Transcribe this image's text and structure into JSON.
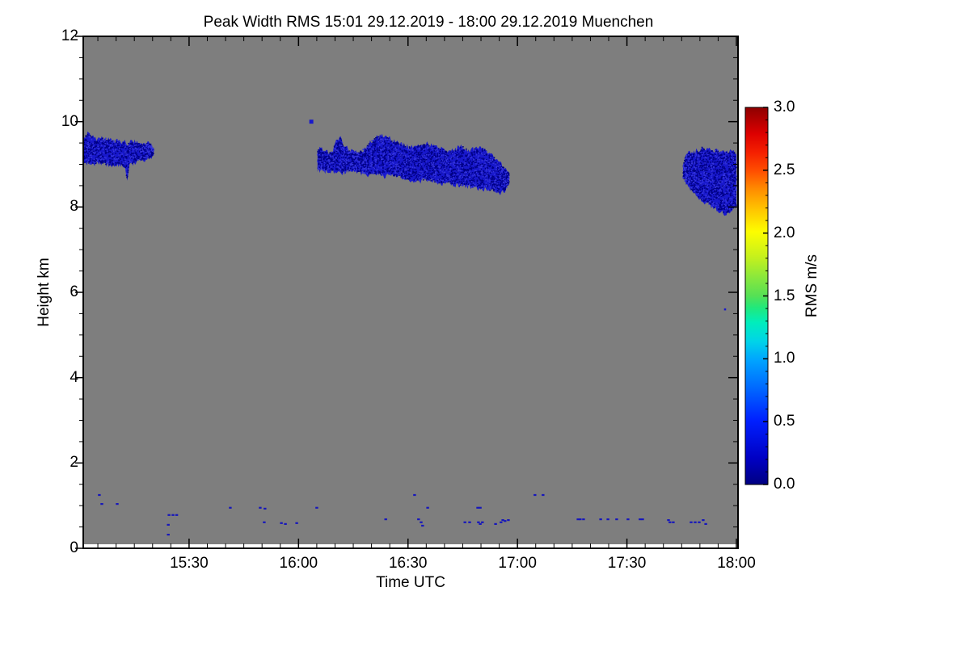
{
  "figure": {
    "title": "Peak Width RMS   15:01 29.12.2019 - 18:00 29.12.2019 Muenchen"
  },
  "axes": {
    "x": {
      "label": "Time UTC",
      "tick_labels": [
        "15:30",
        "16:00",
        "16:30",
        "17:00",
        "17:30",
        "18:00"
      ],
      "tick_minutes": [
        30,
        60,
        90,
        120,
        150,
        180
      ],
      "minor_step_minutes": 5,
      "range_minutes": [
        1,
        180
      ]
    },
    "y": {
      "label": "Height km",
      "tick_labels": [
        "0",
        "2",
        "4",
        "6",
        "8",
        "10",
        "12"
      ],
      "tick_values": [
        0,
        2,
        4,
        6,
        8,
        10,
        12
      ],
      "minor_step_km": 0.5,
      "range_km": [
        0,
        12
      ]
    }
  },
  "colorbar": {
    "label": "RMS m/s",
    "tick_labels": [
      "0.0",
      "0.5",
      "1.0",
      "1.5",
      "2.0",
      "2.5",
      "3.0"
    ],
    "tick_values": [
      0,
      0.5,
      1,
      1.5,
      2,
      2.5,
      3
    ],
    "range": [
      0,
      3
    ],
    "gradient_stops": [
      [
        "0.00",
        "#000082"
      ],
      [
        "0.07",
        "#0000c4"
      ],
      [
        "0.17",
        "#0020ff"
      ],
      [
        "0.25",
        "#0064ff"
      ],
      [
        "0.33",
        "#00a4ff"
      ],
      [
        "0.38",
        "#00d4e8"
      ],
      [
        "0.43",
        "#00eebb"
      ],
      [
        "0.47",
        "#22e87a"
      ],
      [
        "0.50",
        "#55e055"
      ],
      [
        "0.55",
        "#8ae83c"
      ],
      [
        "0.60",
        "#c2f01e"
      ],
      [
        "0.67",
        "#fdfd00"
      ],
      [
        "0.73",
        "#ffc400"
      ],
      [
        "0.78",
        "#ff9000"
      ],
      [
        "0.83",
        "#ff5000"
      ],
      [
        "0.88",
        "#f52000"
      ],
      [
        "0.93",
        "#dd0000"
      ],
      [
        "1.00",
        "#8e0000"
      ]
    ]
  },
  "colors": {
    "figure_bg": "#ffffff",
    "plot_bg": "#7e7e7e",
    "axis": "#000000",
    "cloud_fill": "#1818cc",
    "cloud_speckle_dark": "#000085",
    "cloud_speckle_light": "#3434dd",
    "surface_speck": "#1717bb"
  },
  "chart_data": {
    "type": "heatmap",
    "title": "Peak Width RMS   15:01 29.12.2019 - 18:00 29.12.2019 Muenchen",
    "xlabel": "Time UTC",
    "ylabel": "Height km",
    "colorbar_label": "RMS m/s",
    "time_start": "15:01",
    "time_end": "18:00",
    "date": "29.12.2019",
    "station": "Muenchen",
    "x_axis_unit": "minutes after 15:00 UTC",
    "y_axis_unit": "km",
    "value_range_ms": [
      0,
      3
    ],
    "background": "no-data gray",
    "observed_rms_range_ms": [
      0.1,
      0.5
    ],
    "cloud_bands": [
      {
        "name": "cirrus-band-1",
        "time_span": "15:01-15:21",
        "rms_ms": 0.3,
        "top_profile": [
          [
            1,
            9.62
          ],
          [
            2,
            9.72
          ],
          [
            3.5,
            9.64
          ],
          [
            5,
            9.6
          ],
          [
            7,
            9.62
          ],
          [
            9,
            9.57
          ],
          [
            11,
            9.55
          ],
          [
            13,
            9.5
          ],
          [
            15,
            9.53
          ],
          [
            17,
            9.47
          ],
          [
            19,
            9.5
          ],
          [
            20.3,
            9.4
          ]
        ],
        "bottom_profile": [
          [
            1,
            9.05
          ],
          [
            3,
            9.0
          ],
          [
            5,
            9.03
          ],
          [
            7,
            9.0
          ],
          [
            9,
            8.98
          ],
          [
            11,
            9.0
          ],
          [
            12.4,
            8.95
          ],
          [
            13,
            8.62
          ],
          [
            13.6,
            8.97
          ],
          [
            15,
            9.05
          ],
          [
            17,
            9.1
          ],
          [
            19,
            9.15
          ],
          [
            20.3,
            9.22
          ]
        ]
      },
      {
        "name": "cirrus-band-2",
        "time_span": "16:05-16:58",
        "rms_ms": 0.3,
        "top_profile": [
          [
            65.2,
            9.3
          ],
          [
            66,
            9.38
          ],
          [
            67,
            9.3
          ],
          [
            69,
            9.27
          ],
          [
            70.5,
            9.55
          ],
          [
            71.5,
            9.62
          ],
          [
            72.5,
            9.45
          ],
          [
            74,
            9.32
          ],
          [
            76,
            9.27
          ],
          [
            78,
            9.36
          ],
          [
            80,
            9.55
          ],
          [
            81.5,
            9.65
          ],
          [
            83,
            9.66
          ],
          [
            85,
            9.6
          ],
          [
            87,
            9.52
          ],
          [
            89,
            9.46
          ],
          [
            91,
            9.4
          ],
          [
            93,
            9.44
          ],
          [
            95,
            9.48
          ],
          [
            97,
            9.42
          ],
          [
            99,
            9.36
          ],
          [
            101,
            9.31
          ],
          [
            103,
            9.36
          ],
          [
            105,
            9.42
          ],
          [
            107,
            9.32
          ],
          [
            109,
            9.4
          ],
          [
            111,
            9.36
          ],
          [
            113,
            9.22
          ],
          [
            115,
            9.05
          ],
          [
            116.5,
            8.9
          ],
          [
            117.7,
            8.78
          ]
        ],
        "bottom_profile": [
          [
            65.2,
            8.88
          ],
          [
            67,
            8.82
          ],
          [
            69,
            8.86
          ],
          [
            71,
            8.8
          ],
          [
            73,
            8.82
          ],
          [
            75,
            8.86
          ],
          [
            77,
            8.8
          ],
          [
            79,
            8.76
          ],
          [
            81,
            8.78
          ],
          [
            83,
            8.72
          ],
          [
            85,
            8.74
          ],
          [
            87,
            8.7
          ],
          [
            89,
            8.66
          ],
          [
            91,
            8.63
          ],
          [
            93,
            8.6
          ],
          [
            95,
            8.62
          ],
          [
            97,
            8.58
          ],
          [
            99,
            8.55
          ],
          [
            101,
            8.58
          ],
          [
            103,
            8.52
          ],
          [
            105,
            8.5
          ],
          [
            107,
            8.48
          ],
          [
            109,
            8.45
          ],
          [
            111,
            8.42
          ],
          [
            113,
            8.38
          ],
          [
            115,
            8.33
          ],
          [
            116.5,
            8.36
          ],
          [
            117.7,
            8.58
          ]
        ]
      },
      {
        "name": "cirrus-band-3",
        "time_span": "17:45-18:00",
        "rms_ms": 0.3,
        "top_profile": [
          [
            165.4,
            8.95
          ],
          [
            166,
            9.18
          ],
          [
            167,
            9.28
          ],
          [
            168,
            9.22
          ],
          [
            169,
            9.32
          ],
          [
            170,
            9.26
          ],
          [
            170.8,
            9.45
          ],
          [
            171.5,
            9.32
          ],
          [
            172.5,
            9.38
          ],
          [
            173.5,
            9.3
          ],
          [
            174.5,
            9.36
          ],
          [
            175.5,
            9.28
          ],
          [
            176.5,
            9.32
          ],
          [
            177.5,
            9.28
          ],
          [
            178.5,
            9.3
          ],
          [
            180,
            9.26
          ]
        ],
        "bottom_profile": [
          [
            165.4,
            8.68
          ],
          [
            166.5,
            8.52
          ],
          [
            167.5,
            8.42
          ],
          [
            168.5,
            8.32
          ],
          [
            169.5,
            8.22
          ],
          [
            170.5,
            8.16
          ],
          [
            171.5,
            8.1
          ],
          [
            172.5,
            8.06
          ],
          [
            173.5,
            8.0
          ],
          [
            174.5,
            7.96
          ],
          [
            175.5,
            7.9
          ],
          [
            176.5,
            7.84
          ],
          [
            177.5,
            7.87
          ],
          [
            178.5,
            7.92
          ],
          [
            180,
            8.0
          ]
        ]
      }
    ],
    "point_features": [
      {
        "t_min": 63.5,
        "height_km": 10.0,
        "size": 5
      },
      {
        "t_min": 176.9,
        "height_km": 5.6,
        "size": 2.5
      }
    ],
    "surface_specks": [
      [
        5.4,
        1.25
      ],
      [
        6.1,
        1.04
      ],
      [
        10.3,
        1.04
      ],
      [
        24.5,
        0.78
      ],
      [
        25.6,
        0.78
      ],
      [
        26.6,
        0.78
      ],
      [
        24.3,
        0.55
      ],
      [
        24.3,
        0.32
      ],
      [
        41.3,
        0.95
      ],
      [
        49.5,
        0.95
      ],
      [
        50.8,
        0.93
      ],
      [
        50.6,
        0.61
      ],
      [
        55.3,
        0.59
      ],
      [
        56.4,
        0.57
      ],
      [
        59.5,
        0.59
      ],
      [
        65.0,
        0.95
      ],
      [
        83.9,
        0.68
      ],
      [
        91.8,
        1.25
      ],
      [
        92.9,
        0.68
      ],
      [
        93.6,
        0.61
      ],
      [
        94.0,
        0.53
      ],
      [
        95.4,
        0.95
      ],
      [
        105.6,
        0.61
      ],
      [
        106.9,
        0.61
      ],
      [
        109.1,
        0.95
      ],
      [
        109.8,
        0.95
      ],
      [
        109.3,
        0.61
      ],
      [
        109.8,
        0.57
      ],
      [
        110.4,
        0.61
      ],
      [
        114.0,
        0.57
      ],
      [
        115.5,
        0.61
      ],
      [
        116.0,
        0.66
      ],
      [
        116.6,
        0.64
      ],
      [
        117.5,
        0.66
      ],
      [
        124.8,
        1.25
      ],
      [
        127.0,
        1.25
      ],
      [
        136.6,
        0.68
      ],
      [
        137.2,
        0.68
      ],
      [
        138.1,
        0.68
      ],
      [
        142.8,
        0.68
      ],
      [
        144.8,
        0.68
      ],
      [
        147.2,
        0.68
      ],
      [
        150.3,
        0.68
      ],
      [
        153.6,
        0.68
      ],
      [
        154.3,
        0.68
      ],
      [
        161.4,
        0.66
      ],
      [
        161.8,
        0.61
      ],
      [
        162.7,
        0.61
      ],
      [
        167.6,
        0.61
      ],
      [
        168.7,
        0.61
      ],
      [
        169.8,
        0.61
      ],
      [
        170.9,
        0.66
      ],
      [
        171.6,
        0.57
      ]
    ]
  }
}
